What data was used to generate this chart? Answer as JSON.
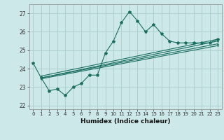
{
  "title": "",
  "xlabel": "Humidex (Indice chaleur)",
  "bg_color": "#cce8e8",
  "grid_color": "#aacccc",
  "line_color": "#1a6e60",
  "xlim": [
    -0.5,
    23.5
  ],
  "ylim": [
    21.8,
    27.5
  ],
  "yticks": [
    22,
    23,
    24,
    25,
    26,
    27
  ],
  "xticks": [
    0,
    1,
    2,
    3,
    4,
    5,
    6,
    7,
    8,
    9,
    10,
    11,
    12,
    13,
    14,
    15,
    16,
    17,
    18,
    19,
    20,
    21,
    22,
    23
  ],
  "line1_x": [
    0,
    1,
    2,
    3,
    4,
    5,
    6,
    7,
    8,
    9,
    10,
    11,
    12,
    13,
    14,
    15,
    16,
    17,
    18,
    19,
    20,
    21,
    22,
    23
  ],
  "line1_y": [
    24.3,
    23.5,
    22.8,
    22.9,
    22.55,
    23.0,
    23.2,
    23.65,
    23.65,
    24.85,
    25.5,
    26.5,
    27.1,
    26.6,
    26.0,
    26.4,
    25.9,
    25.5,
    25.4,
    25.4,
    25.4,
    25.4,
    25.4,
    25.6
  ],
  "line2_x": [
    1,
    23
  ],
  "line2_y": [
    23.5,
    25.35
  ],
  "line3_x": [
    1,
    23
  ],
  "line3_y": [
    23.5,
    25.5
  ],
  "line4_x": [
    1,
    23
  ],
  "line4_y": [
    23.6,
    25.6
  ],
  "line5_x": [
    1,
    23
  ],
  "line5_y": [
    23.45,
    25.25
  ]
}
